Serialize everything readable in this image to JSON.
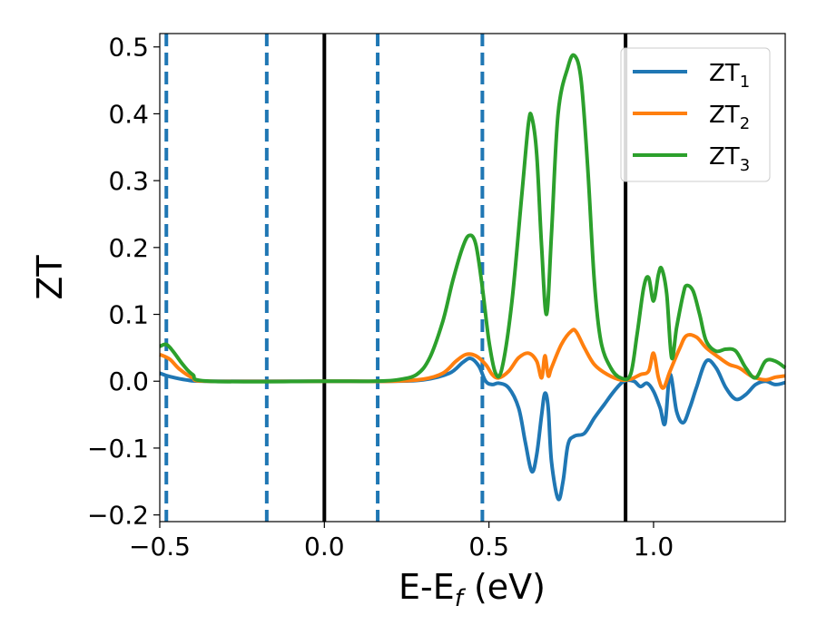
{
  "chart_data": {
    "type": "line",
    "xlabel": "E-E",
    "xlabel_sub": "f",
    "xlabel_unit": " (eV)",
    "ylabel": "ZT",
    "xlim": [
      -0.5,
      1.4
    ],
    "ylim": [
      -0.21,
      0.52
    ],
    "xticks": [
      -0.5,
      0.0,
      0.5,
      1.0
    ],
    "xtick_labels": [
      "−0.5",
      "0.0",
      "0.5",
      "1.0"
    ],
    "yticks": [
      -0.2,
      -0.1,
      0.0,
      0.1,
      0.2,
      0.3,
      0.4,
      0.5
    ],
    "ytick_labels": [
      "−0.2",
      "−0.1",
      "0.0",
      "0.1",
      "0.2",
      "0.3",
      "0.4",
      "0.5"
    ],
    "grid": false,
    "legend_position": "top-right",
    "vlines_solid": [
      0.0,
      0.915
    ],
    "vlines_dashed": [
      -0.48,
      -0.175,
      0.162,
      0.48
    ],
    "series": [
      {
        "name": "ZT",
        "name_sub": "1",
        "color": "#1f77b4",
        "points": [
          [
            -0.5,
            0.012
          ],
          [
            -0.47,
            0.007
          ],
          [
            -0.42,
            0.002
          ],
          [
            -0.35,
            0.0
          ],
          [
            0.0,
            0.0
          ],
          [
            0.2,
            0.0
          ],
          [
            0.3,
            0.002
          ],
          [
            0.38,
            0.012
          ],
          [
            0.42,
            0.028
          ],
          [
            0.445,
            0.034
          ],
          [
            0.47,
            0.022
          ],
          [
            0.49,
            0.0
          ],
          [
            0.51,
            -0.005
          ],
          [
            0.53,
            -0.003
          ],
          [
            0.56,
            -0.01
          ],
          [
            0.59,
            -0.04
          ],
          [
            0.61,
            -0.09
          ],
          [
            0.63,
            -0.135
          ],
          [
            0.645,
            -0.11
          ],
          [
            0.66,
            -0.05
          ],
          [
            0.67,
            -0.018
          ],
          [
            0.68,
            -0.04
          ],
          [
            0.69,
            -0.12
          ],
          [
            0.71,
            -0.176
          ],
          [
            0.725,
            -0.15
          ],
          [
            0.74,
            -0.095
          ],
          [
            0.76,
            -0.082
          ],
          [
            0.79,
            -0.078
          ],
          [
            0.82,
            -0.055
          ],
          [
            0.85,
            -0.035
          ],
          [
            0.88,
            -0.015
          ],
          [
            0.91,
            0.0
          ],
          [
            0.94,
            0.0
          ],
          [
            0.96,
            -0.008
          ],
          [
            0.98,
            -0.003
          ],
          [
            1.0,
            -0.015
          ],
          [
            1.02,
            -0.04
          ],
          [
            1.035,
            -0.063
          ],
          [
            1.05,
            0.01
          ],
          [
            1.07,
            -0.045
          ],
          [
            1.09,
            -0.062
          ],
          [
            1.11,
            -0.04
          ],
          [
            1.13,
            -0.01
          ],
          [
            1.16,
            0.03
          ],
          [
            1.19,
            0.02
          ],
          [
            1.22,
            -0.01
          ],
          [
            1.25,
            -0.027
          ],
          [
            1.28,
            -0.02
          ],
          [
            1.31,
            -0.005
          ],
          [
            1.34,
            0.0
          ],
          [
            1.37,
            -0.005
          ],
          [
            1.4,
            -0.002
          ]
        ]
      },
      {
        "name": "ZT",
        "name_sub": "2",
        "color": "#ff7f0e",
        "points": [
          [
            -0.5,
            0.04
          ],
          [
            -0.47,
            0.033
          ],
          [
            -0.44,
            0.018
          ],
          [
            -0.4,
            0.005
          ],
          [
            -0.35,
            0.0
          ],
          [
            0.0,
            0.0
          ],
          [
            0.2,
            0.0
          ],
          [
            0.3,
            0.003
          ],
          [
            0.36,
            0.012
          ],
          [
            0.4,
            0.03
          ],
          [
            0.43,
            0.04
          ],
          [
            0.46,
            0.038
          ],
          [
            0.49,
            0.025
          ],
          [
            0.51,
            0.01
          ],
          [
            0.53,
            0.005
          ],
          [
            0.56,
            0.015
          ],
          [
            0.59,
            0.035
          ],
          [
            0.62,
            0.042
          ],
          [
            0.645,
            0.03
          ],
          [
            0.66,
            0.005
          ],
          [
            0.67,
            0.038
          ],
          [
            0.68,
            0.008
          ],
          [
            0.69,
            0.02
          ],
          [
            0.72,
            0.055
          ],
          [
            0.75,
            0.075
          ],
          [
            0.765,
            0.074
          ],
          [
            0.79,
            0.05
          ],
          [
            0.82,
            0.025
          ],
          [
            0.86,
            0.01
          ],
          [
            0.9,
            0.002
          ],
          [
            0.93,
            0.003
          ],
          [
            0.96,
            0.01
          ],
          [
            0.985,
            0.015
          ],
          [
            1.0,
            0.042
          ],
          [
            1.015,
            0.005
          ],
          [
            1.03,
            -0.01
          ],
          [
            1.05,
            0.015
          ],
          [
            1.08,
            0.05
          ],
          [
            1.1,
            0.068
          ],
          [
            1.13,
            0.066
          ],
          [
            1.16,
            0.05
          ],
          [
            1.2,
            0.035
          ],
          [
            1.23,
            0.025
          ],
          [
            1.26,
            0.02
          ],
          [
            1.3,
            0.007
          ],
          [
            1.34,
            0.002
          ],
          [
            1.37,
            0.006
          ],
          [
            1.4,
            0.008
          ]
        ]
      },
      {
        "name": "ZT",
        "name_sub": "3",
        "color": "#2ca02c",
        "points": [
          [
            -0.5,
            0.052
          ],
          [
            -0.48,
            0.055
          ],
          [
            -0.46,
            0.045
          ],
          [
            -0.43,
            0.025
          ],
          [
            -0.4,
            0.01
          ],
          [
            -0.35,
            0.0
          ],
          [
            0.0,
            0.0
          ],
          [
            0.15,
            0.0
          ],
          [
            0.22,
            0.002
          ],
          [
            0.28,
            0.01
          ],
          [
            0.32,
            0.035
          ],
          [
            0.36,
            0.09
          ],
          [
            0.39,
            0.15
          ],
          [
            0.42,
            0.2
          ],
          [
            0.44,
            0.218
          ],
          [
            0.46,
            0.205
          ],
          [
            0.48,
            0.14
          ],
          [
            0.5,
            0.06
          ],
          [
            0.52,
            0.012
          ],
          [
            0.54,
            0.02
          ],
          [
            0.57,
            0.12
          ],
          [
            0.6,
            0.28
          ],
          [
            0.62,
            0.385
          ],
          [
            0.63,
            0.395
          ],
          [
            0.645,
            0.34
          ],
          [
            0.66,
            0.2
          ],
          [
            0.675,
            0.1
          ],
          [
            0.69,
            0.22
          ],
          [
            0.71,
            0.4
          ],
          [
            0.74,
            0.47
          ],
          [
            0.76,
            0.487
          ],
          [
            0.78,
            0.45
          ],
          [
            0.8,
            0.32
          ],
          [
            0.82,
            0.15
          ],
          [
            0.84,
            0.06
          ],
          [
            0.87,
            0.02
          ],
          [
            0.9,
            0.005
          ],
          [
            0.93,
            0.01
          ],
          [
            0.95,
            0.07
          ],
          [
            0.97,
            0.14
          ],
          [
            0.985,
            0.155
          ],
          [
            1.0,
            0.12
          ],
          [
            1.015,
            0.16
          ],
          [
            1.025,
            0.168
          ],
          [
            1.04,
            0.13
          ],
          [
            1.055,
            0.035
          ],
          [
            1.07,
            0.08
          ],
          [
            1.09,
            0.13
          ],
          [
            1.1,
            0.143
          ],
          [
            1.12,
            0.135
          ],
          [
            1.14,
            0.1
          ],
          [
            1.16,
            0.06
          ],
          [
            1.19,
            0.045
          ],
          [
            1.22,
            0.048
          ],
          [
            1.25,
            0.045
          ],
          [
            1.28,
            0.02
          ],
          [
            1.31,
            0.005
          ],
          [
            1.34,
            0.03
          ],
          [
            1.37,
            0.03
          ],
          [
            1.4,
            0.02
          ]
        ]
      }
    ]
  }
}
